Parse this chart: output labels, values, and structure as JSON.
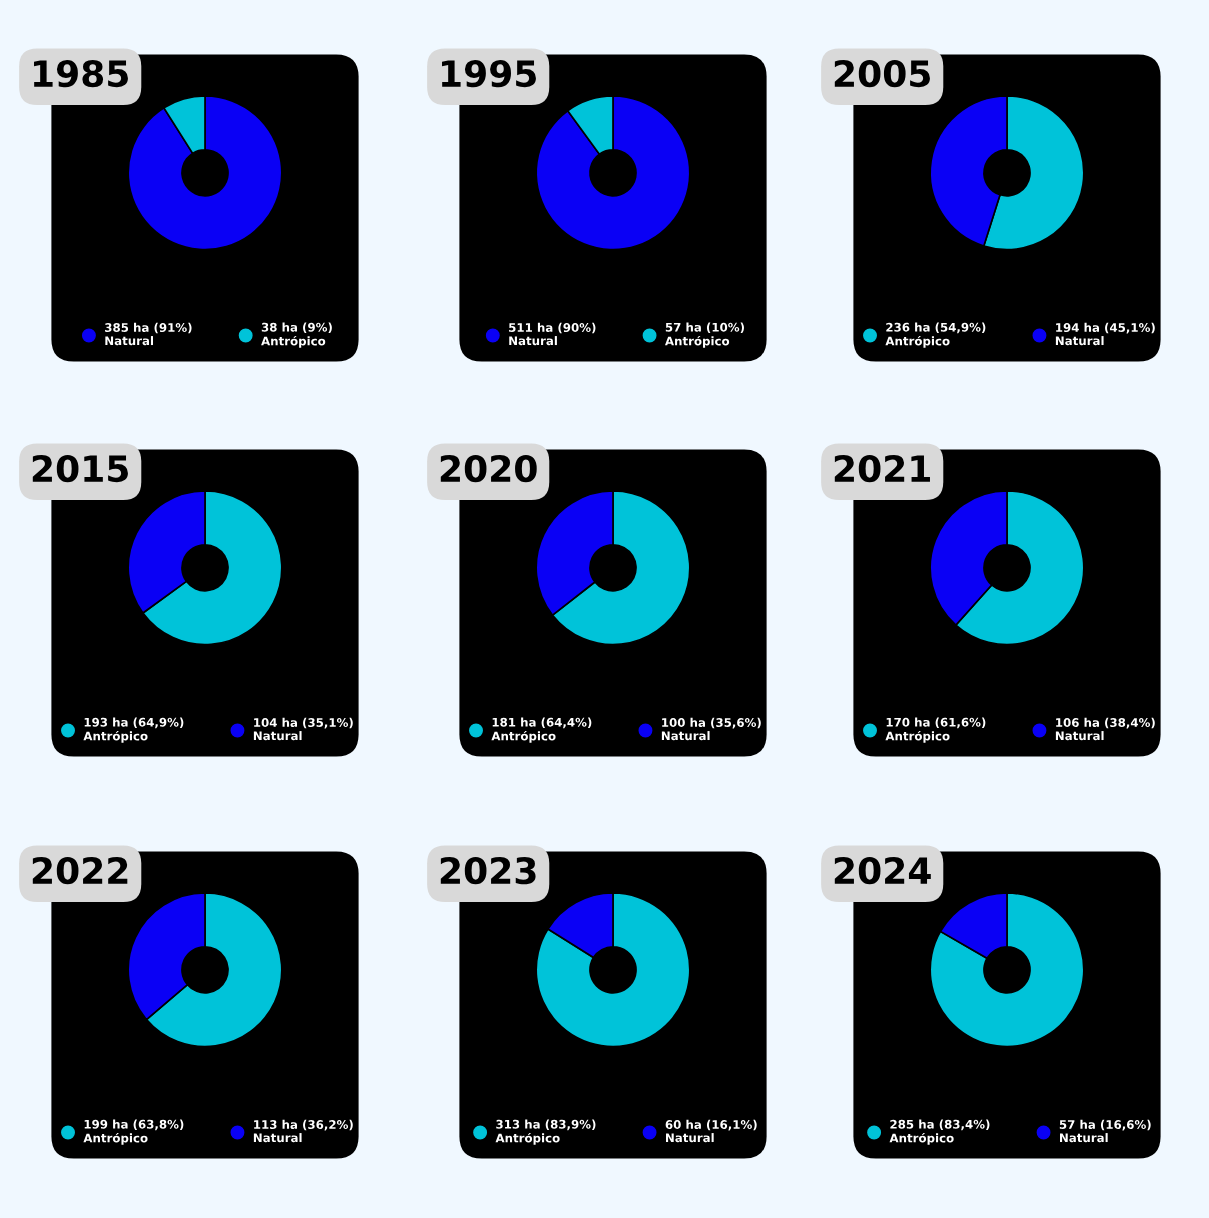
{
  "chart_data": [
    {
      "type": "donut",
      "title": "1985",
      "categories": [
        "Natural",
        "Antrópico"
      ],
      "values": [
        385,
        38
      ],
      "value_labels": [
        "385 ha (91%)",
        "38 ha (9%)"
      ],
      "colors": [
        "#0a00f5",
        "#00c3d9"
      ],
      "legend": "bottom"
    },
    {
      "type": "donut",
      "title": "1995",
      "categories": [
        "Natural",
        "Antrópico"
      ],
      "values": [
        511,
        57
      ],
      "value_labels": [
        "511 ha (90%)",
        "57 ha (10%)"
      ],
      "colors": [
        "#0a00f5",
        "#00c3d9"
      ],
      "legend": "bottom"
    },
    {
      "type": "donut",
      "title": "2005",
      "categories": [
        "Antrópico",
        "Natural"
      ],
      "values": [
        236,
        194
      ],
      "value_labels": [
        "236 ha (54,9%)",
        "194 ha (45,1%)"
      ],
      "colors": [
        "#00c3d9",
        "#0a00f5"
      ],
      "legend": "bottom"
    },
    {
      "type": "donut",
      "title": "2015",
      "categories": [
        "Antrópico",
        "Natural"
      ],
      "values": [
        193,
        104
      ],
      "value_labels": [
        "193 ha (64,9%)",
        "104 ha (35,1%)"
      ],
      "colors": [
        "#00c3d9",
        "#0a00f5"
      ],
      "legend": "bottom"
    },
    {
      "type": "donut",
      "title": "2020",
      "categories": [
        "Antrópico",
        "Natural"
      ],
      "values": [
        181,
        100
      ],
      "value_labels": [
        "181 ha (64,4%)",
        "100 ha (35,6%)"
      ],
      "colors": [
        "#00c3d9",
        "#0a00f5"
      ],
      "legend": "bottom"
    },
    {
      "type": "donut",
      "title": "2021",
      "categories": [
        "Antrópico",
        "Natural"
      ],
      "values": [
        170,
        106
      ],
      "value_labels": [
        "170 ha (61,6%)",
        "106 ha (38,4%)"
      ],
      "colors": [
        "#00c3d9",
        "#0a00f5"
      ],
      "legend": "bottom"
    },
    {
      "type": "donut",
      "title": "2022",
      "categories": [
        "Antrópico",
        "Natural"
      ],
      "values": [
        199,
        113
      ],
      "value_labels": [
        "199 ha (63,8%)",
        "113 ha (36,2%)"
      ],
      "colors": [
        "#00c3d9",
        "#0a00f5"
      ],
      "legend": "bottom"
    },
    {
      "type": "donut",
      "title": "2023",
      "categories": [
        "Antrópico",
        "Natural"
      ],
      "values": [
        313,
        60
      ],
      "value_labels": [
        "313 ha (83,9%)",
        "60 ha (16,1%)"
      ],
      "colors": [
        "#00c3d9",
        "#0a00f5"
      ],
      "legend": "bottom"
    },
    {
      "type": "donut",
      "title": "2024",
      "categories": [
        "Antrópico",
        "Natural"
      ],
      "values": [
        285,
        57
      ],
      "value_labels": [
        "285 ha (83,4%)",
        "57 ha (16,6%)"
      ],
      "colors": [
        "#00c3d9",
        "#0a00f5"
      ],
      "legend": "bottom"
    }
  ]
}
